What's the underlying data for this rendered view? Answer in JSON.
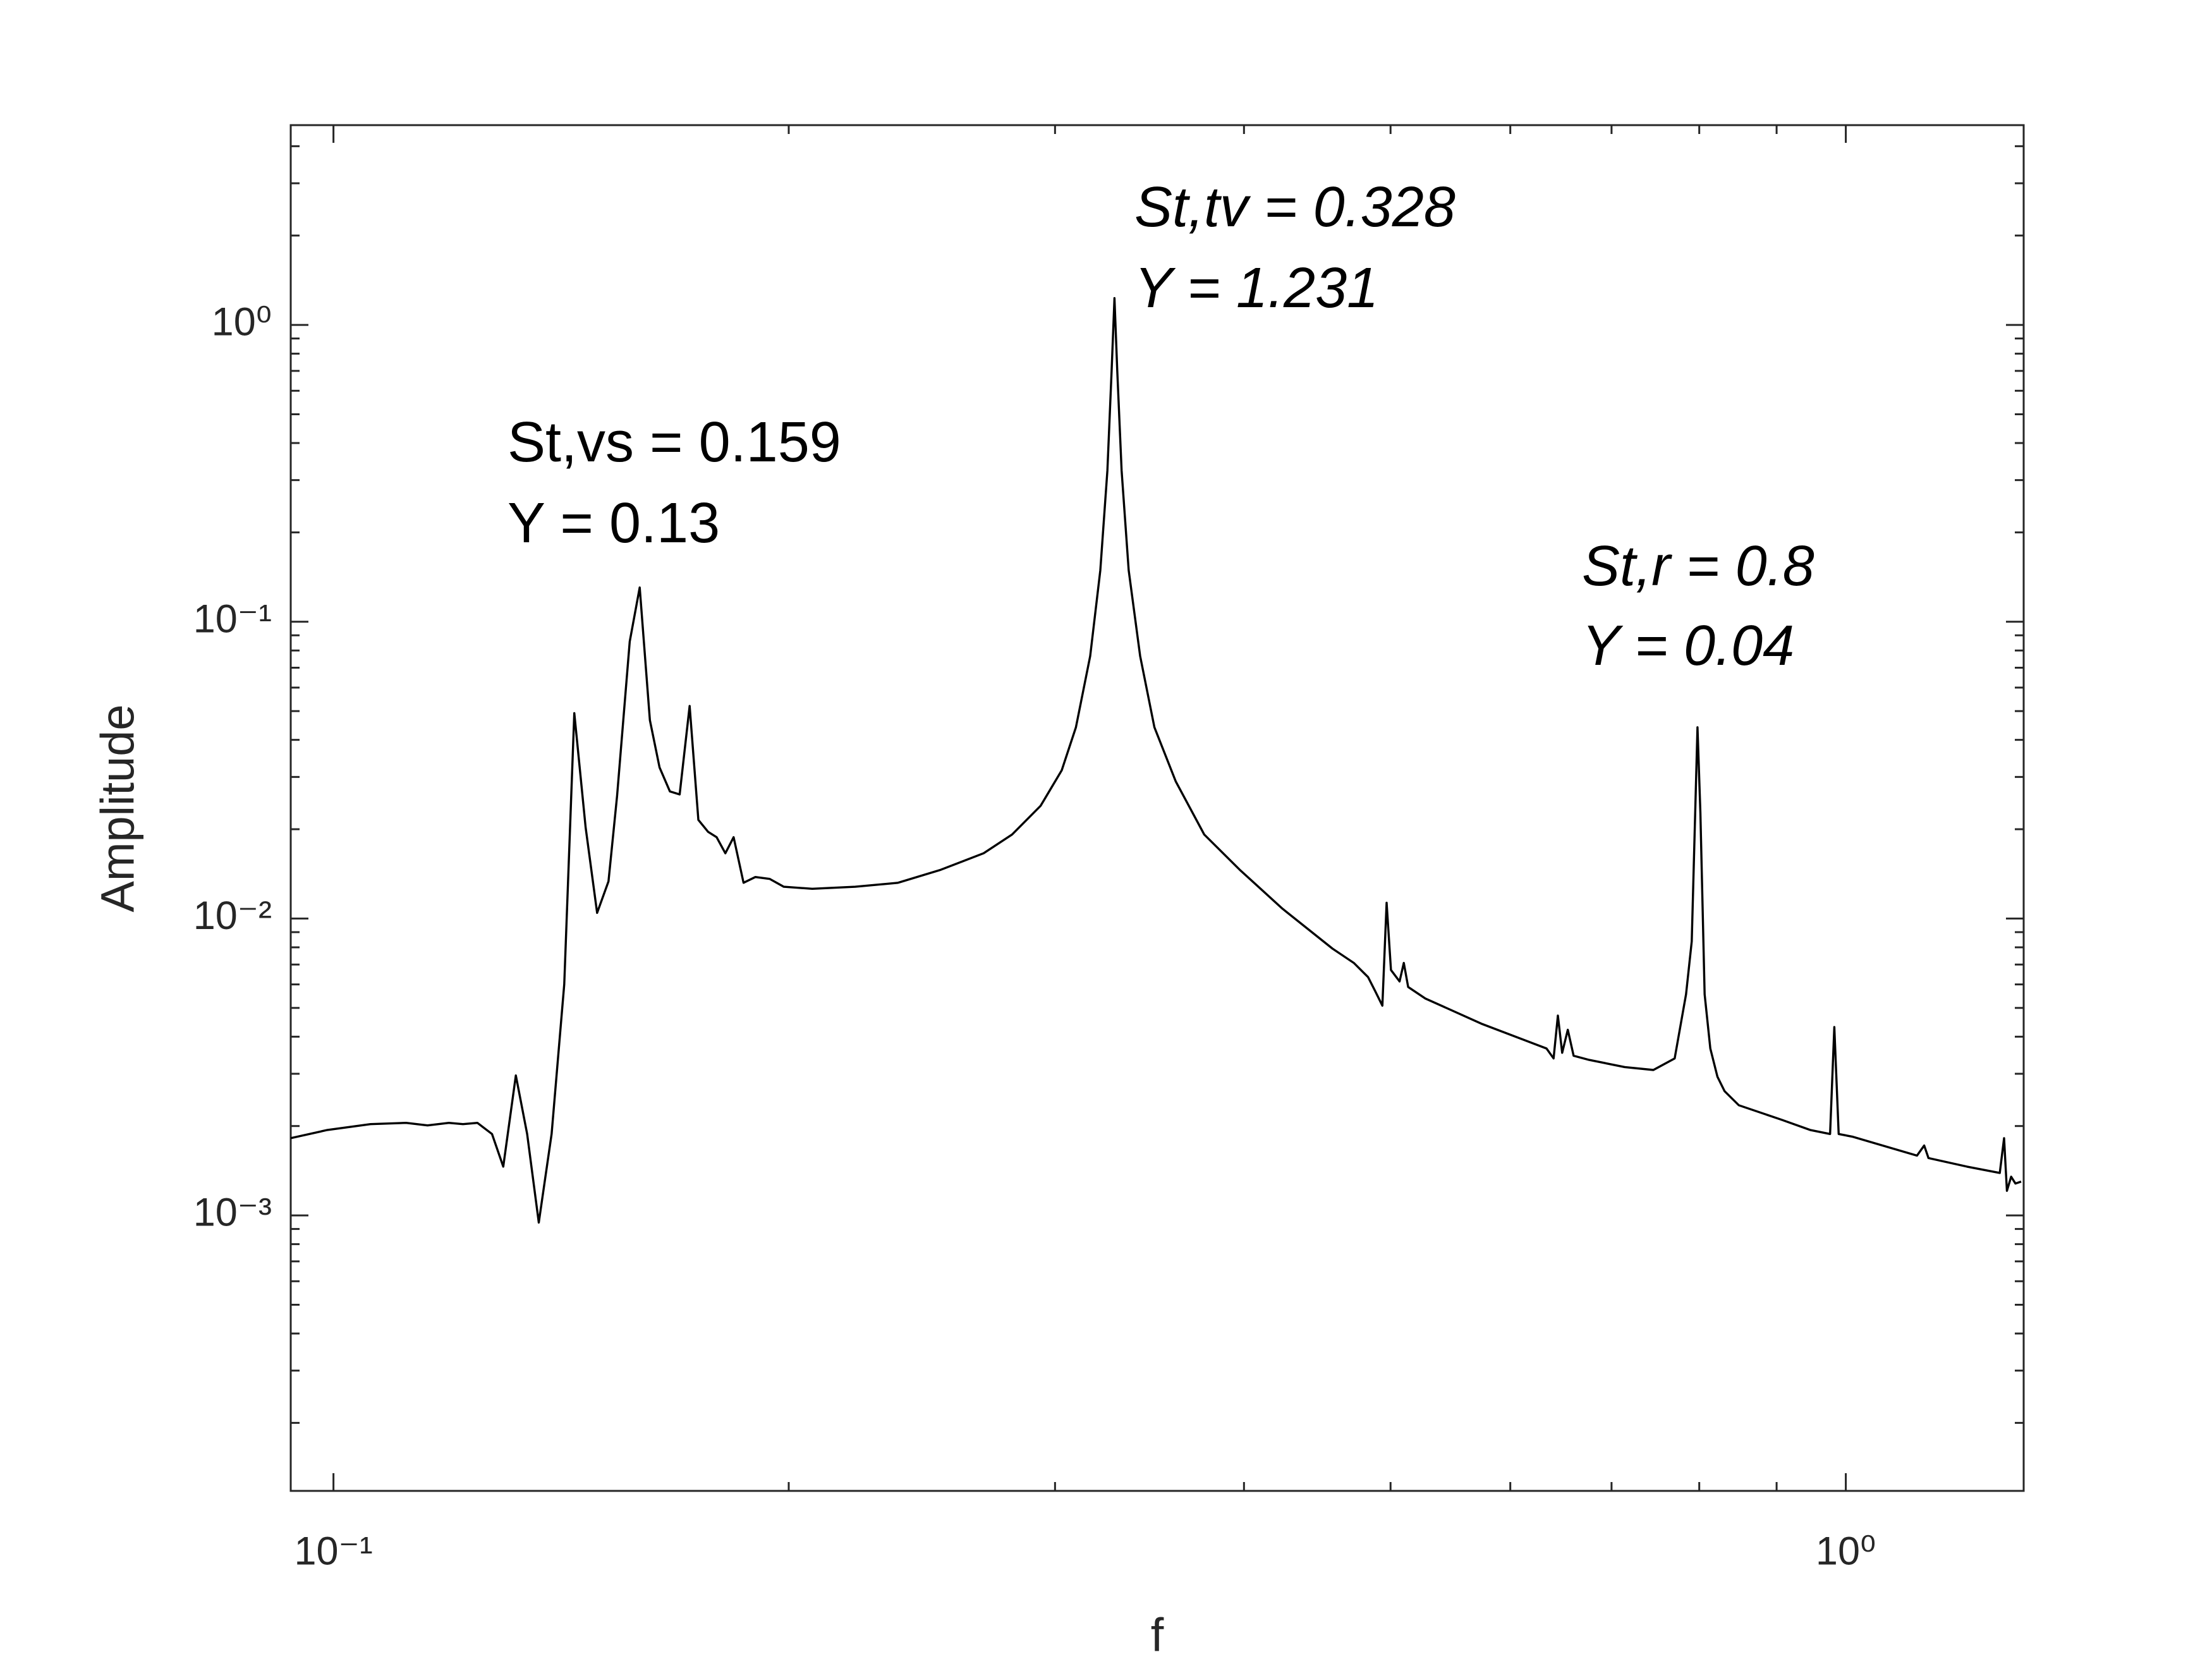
{
  "chart_data": {
    "type": "line",
    "xlabel": "f",
    "ylabel": "Amplitude",
    "xscale": "log",
    "yscale": "log",
    "xlim": [
      0.0937,
      1.311
    ],
    "ylim": [
      0.000118,
      4.71
    ],
    "xticks": [
      {
        "value": 0.1,
        "label": "10⁻¹"
      },
      {
        "value": 1,
        "label": "10⁰"
      }
    ],
    "yticks": [
      {
        "value": 0.001,
        "label": "10⁻³"
      },
      {
        "value": 0.01,
        "label": "10⁻²"
      },
      {
        "value": 0.1,
        "label": "10⁻¹"
      },
      {
        "value": 1,
        "label": "10⁰"
      }
    ],
    "xminorticks": [
      0.2,
      0.3,
      0.4,
      0.5,
      0.6,
      0.7,
      0.8,
      0.9
    ],
    "yminorticks": [
      0.0002,
      0.0003,
      0.0004,
      0.0005,
      0.0006,
      0.0007,
      0.0008,
      0.0009,
      0.002,
      0.003,
      0.004,
      0.005,
      0.006,
      0.007,
      0.008,
      0.009,
      0.02,
      0.03,
      0.04,
      0.05,
      0.06,
      0.07,
      0.08,
      0.09,
      0.2,
      0.3,
      0.4,
      0.5,
      0.6,
      0.7,
      0.8,
      0.9,
      2,
      3,
      4
    ],
    "grid": false,
    "series": [
      {
        "color": "#000000",
        "x": [
          0.0937,
          0.0991,
          0.1058,
          0.1117,
          0.1154,
          0.1192,
          0.1218,
          0.1245,
          0.1273,
          0.1295,
          0.132,
          0.1343,
          0.1367,
          0.1394,
          0.1421,
          0.1443,
          0.1468,
          0.1494,
          0.152,
          0.154,
          0.157,
          0.1594,
          0.1619,
          0.1643,
          0.1669,
          0.1694,
          0.172,
          0.1743,
          0.1769,
          0.1792,
          0.1816,
          0.1839,
          0.1867,
          0.1901,
          0.1943,
          0.1985,
          0.2073,
          0.2213,
          0.2362,
          0.2521,
          0.2691,
          0.281,
          0.2935,
          0.3031,
          0.3097,
          0.3165,
          0.3214,
          0.3249,
          0.327,
          0.3284,
          0.3298,
          0.332,
          0.3356,
          0.3415,
          0.349,
          0.3605,
          0.3765,
          0.3974,
          0.4241,
          0.4577,
          0.4728,
          0.4832,
          0.4885,
          0.4938,
          0.497,
          0.5003,
          0.5069,
          0.5102,
          0.5136,
          0.5272,
          0.575,
          0.634,
          0.6409,
          0.6451,
          0.6493,
          0.6549,
          0.6607,
          0.6766,
          0.7142,
          0.746,
          0.7706,
          0.7841,
          0.7909,
          0.7979,
          0.8014,
          0.8066,
          0.8136,
          0.8225,
          0.8315,
          0.8497,
          0.907,
          0.9471,
          0.9763,
          0.9827,
          0.9892,
          1.0109,
          1.1145,
          1.1267,
          1.1341,
          1.2025,
          1.2642,
          1.2725,
          1.278,
          1.2863,
          1.2947,
          1.306
        ],
        "values": [
          0.00182,
          0.00194,
          0.00203,
          0.00205,
          0.00201,
          0.00205,
          0.00203,
          0.00205,
          0.00188,
          0.00146,
          0.00296,
          0.00188,
          0.000946,
          0.00188,
          0.00601,
          0.0492,
          0.0203,
          0.01045,
          0.01334,
          0.0259,
          0.0857,
          0.1304,
          0.0466,
          0.0323,
          0.0268,
          0.0262,
          0.052,
          0.0215,
          0.0196,
          0.0188,
          0.0166,
          0.0188,
          0.0132,
          0.0138,
          0.0136,
          0.0128,
          0.0126,
          0.0128,
          0.0132,
          0.0146,
          0.0166,
          0.0192,
          0.024,
          0.0316,
          0.0441,
          0.0767,
          0.149,
          0.323,
          0.702,
          1.231,
          0.702,
          0.323,
          0.149,
          0.0767,
          0.0441,
          0.029,
          0.0192,
          0.0146,
          0.0108,
          0.00792,
          0.00709,
          0.00635,
          0.00569,
          0.00509,
          0.0113,
          0.00671,
          0.00614,
          0.00709,
          0.00588,
          0.00538,
          0.00441,
          0.00365,
          0.00338,
          0.00471,
          0.00353,
          0.00422,
          0.00345,
          0.00334,
          0.00316,
          0.00309,
          0.00338,
          0.00556,
          0.00838,
          0.0441,
          0.0227,
          0.00556,
          0.00365,
          0.00293,
          0.00262,
          0.00235,
          0.0021,
          0.00194,
          0.00188,
          0.00431,
          0.00188,
          0.00184,
          0.00159,
          0.00172,
          0.00156,
          0.00146,
          0.00139,
          0.00182,
          0.00121,
          0.00135,
          0.00128,
          0.0013
        ]
      }
    ],
    "annotations": [
      {
        "text": "St,vs = 0.159",
        "italic": false
      },
      {
        "text": "Y = 0.13",
        "italic": false
      },
      {
        "text": "St,tv = 0.328",
        "italic": true
      },
      {
        "text": "Y = 1.231",
        "italic": true
      },
      {
        "text": "St,r = 0.8",
        "italic": true
      },
      {
        "text": "Y = 0.04",
        "italic": true
      }
    ]
  }
}
